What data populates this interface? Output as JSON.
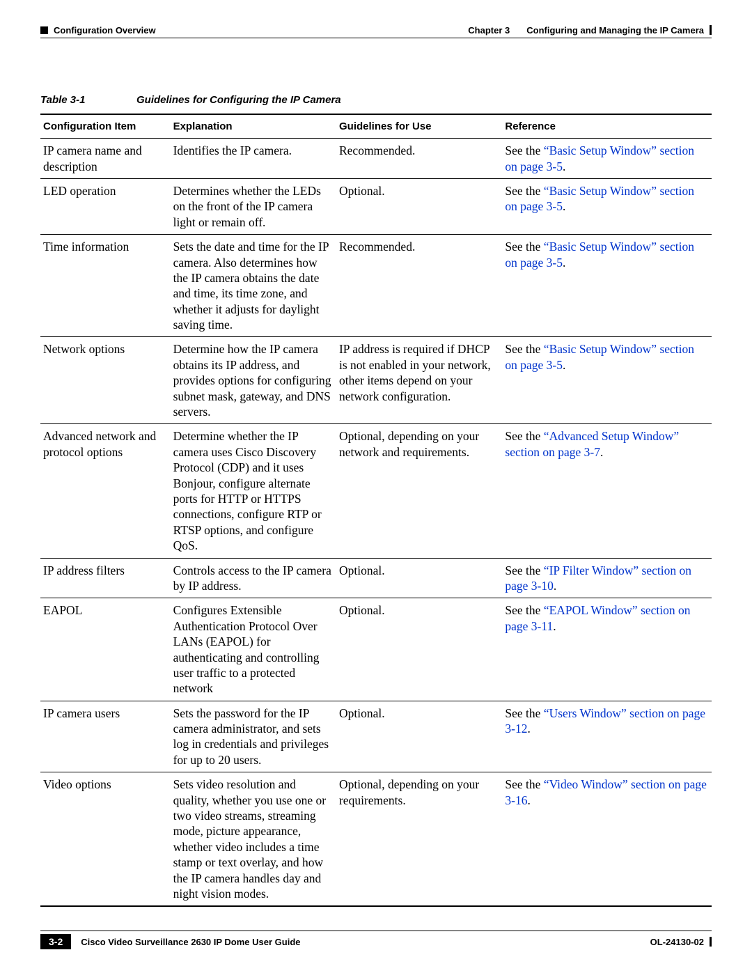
{
  "header": {
    "section_left": "Configuration Overview",
    "chapter_label": "Chapter 3",
    "chapter_title": "Configuring and Managing the IP Camera"
  },
  "table_caption": {
    "label": "Table 3-1",
    "text": "Guidelines for Configuring the IP Camera"
  },
  "columns": [
    "Configuration Item",
    "Explanation",
    "Guidelines for Use",
    "Reference"
  ],
  "column_widths_pct": [
    18,
    23,
    23,
    29
  ],
  "link_color": "#0033cc",
  "body_font_pt": 17.5,
  "header_font_pt": 15,
  "rows": [
    {
      "item": "IP camera name and description",
      "explanation": "Identifies the IP camera.",
      "guidelines": "Recommended.",
      "ref_pre": "See the ",
      "ref_link": "“Basic Setup Window” section on page 3-5",
      "ref_post": "."
    },
    {
      "item": "LED operation",
      "explanation": "Determines whether the LEDs on the front of the IP camera light or remain off.",
      "guidelines": "Optional.",
      "ref_pre": "See the ",
      "ref_link": "“Basic Setup Window” section on page 3-5",
      "ref_post": "."
    },
    {
      "item": "Time information",
      "explanation": "Sets the date and time for the IP camera. Also determines how the IP camera obtains the date and time, its time zone, and whether it adjusts for daylight saving time.",
      "guidelines": "Recommended.",
      "ref_pre": "See the ",
      "ref_link": "“Basic Setup Window” section on page 3-5",
      "ref_post": "."
    },
    {
      "item": "Network options",
      "explanation": "Determine how the IP camera obtains its IP address, and provides options for configuring subnet mask, gateway, and DNS servers.",
      "guidelines": "IP address is required if DHCP is not enabled in your network, other items depend on your network configuration.",
      "ref_pre": "See the ",
      "ref_link": "“Basic Setup Window” section on page 3-5",
      "ref_post": "."
    },
    {
      "item": "Advanced network and protocol options",
      "explanation": "Determine whether the IP camera uses Cisco Discovery Protocol (CDP) and it uses Bonjour, configure alternate ports for HTTP or HTTPS connections, configure RTP or RTSP options, and configure QoS.",
      "guidelines": "Optional, depending on your network and requirements.",
      "ref_pre": "See the ",
      "ref_link": "“Advanced Setup Window” section on page 3-7",
      "ref_post": "."
    },
    {
      "item": "IP address filters",
      "explanation": "Controls access to the IP camera by IP address.",
      "guidelines": "Optional.",
      "ref_pre": "See the ",
      "ref_link": "“IP Filter Window” section on page 3-10",
      "ref_post": "."
    },
    {
      "item": "EAPOL",
      "explanation": "Configures Extensible Authentication Protocol Over LANs (EAPOL) for authenticating and controlling user traffic to a protected network",
      "guidelines": "Optional.",
      "ref_pre": "See the ",
      "ref_link": "“EAPOL Window” section on page 3-11",
      "ref_post": "."
    },
    {
      "item": "IP camera users",
      "explanation": "Sets the password for the IP camera administrator, and sets log in credentials and privileges for up to 20 users.",
      "guidelines": "Optional.",
      "ref_pre": "See the ",
      "ref_link": "“Users Window” section on page 3-12",
      "ref_post": "."
    },
    {
      "item": "Video options",
      "explanation": "Sets video resolution and quality, whether you use one or two video streams, streaming mode, picture appearance, whether video includes a time stamp or text overlay, and how the IP camera handles day and night vision modes.",
      "guidelines": "Optional, depending on your requirements.",
      "ref_pre": "See the ",
      "ref_link": "“Video Window” section on page 3-16",
      "ref_post": "."
    }
  ],
  "footer": {
    "guide_title": "Cisco Video Surveillance 2630 IP Dome User Guide",
    "page_number": "3-2",
    "doc_id": "OL-24130-02"
  }
}
